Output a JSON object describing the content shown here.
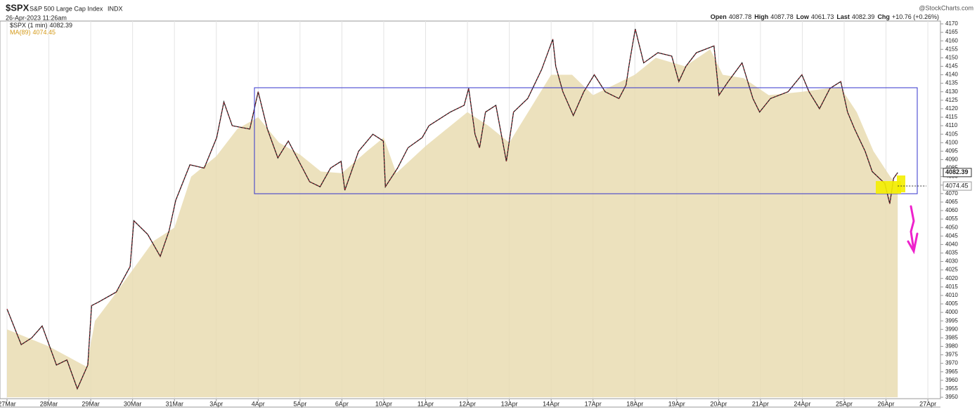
{
  "chart_data": {
    "type": "line",
    "symbol": "$SPX",
    "title": "S&P 500 Large Cap Index",
    "exchange": "INDX",
    "timestamp": "26-Apr-2023 11:26am",
    "source": "@StockCharts.com",
    "quote": [
      {
        "label": "Open",
        "value": 4087.78
      },
      {
        "label": "High",
        "value": 4087.78
      },
      {
        "label": "Low",
        "value": 4061.73
      },
      {
        "label": "Last",
        "value": 4082.39
      },
      {
        "label": "Chg",
        "value": "+10.76 (+0.26%)"
      }
    ],
    "grid": "x",
    "xlim": [
      0,
      22.3
    ],
    "ylim": [
      3950,
      4170
    ],
    "xticks": [
      {
        "value": 0,
        "label": "27Mar"
      },
      {
        "value": 1,
        "label": "28Mar"
      },
      {
        "value": 2,
        "label": "29Mar"
      },
      {
        "value": 3,
        "label": "30Mar"
      },
      {
        "value": 4,
        "label": "31Mar"
      },
      {
        "value": 5,
        "label": "3Apr"
      },
      {
        "value": 6,
        "label": "4Apr"
      },
      {
        "value": 7,
        "label": "5Apr"
      },
      {
        "value": 8,
        "label": "6Apr"
      },
      {
        "value": 9,
        "label": "10Apr"
      },
      {
        "value": 10,
        "label": "11Apr"
      },
      {
        "value": 11,
        "label": "12Apr"
      },
      {
        "value": 12,
        "label": "13Apr"
      },
      {
        "value": 13,
        "label": "14Apr"
      },
      {
        "value": 14,
        "label": "17Apr"
      },
      {
        "value": 15,
        "label": "18Apr"
      },
      {
        "value": 16,
        "label": "19Apr"
      },
      {
        "value": 17,
        "label": "20Apr"
      },
      {
        "value": 18,
        "label": "21Apr"
      },
      {
        "value": 19,
        "label": "24Apr"
      },
      {
        "value": 20,
        "label": "25Apr"
      },
      {
        "value": 21,
        "label": "26Apr"
      },
      {
        "value": 22,
        "label": "27Apr"
      }
    ],
    "yticks": [
      3950,
      3955,
      3960,
      3965,
      3970,
      3975,
      3980,
      3985,
      3990,
      3995,
      4000,
      4005,
      4010,
      4015,
      4020,
      4025,
      4030,
      4035,
      4040,
      4045,
      4050,
      4055,
      4060,
      4065,
      4070,
      4075,
      4080,
      4085,
      4090,
      4095,
      4100,
      4105,
      4110,
      4115,
      4120,
      4125,
      4130,
      4135,
      4140,
      4145,
      4150,
      4155,
      4160,
      4165,
      4170
    ],
    "series": [
      {
        "name": "MA(89)",
        "type": "area",
        "color": "#e9dcb2",
        "x": [
          0,
          1,
          1.9,
          2.1,
          2.5,
          3,
          3.5,
          4,
          4.4,
          5,
          5.5,
          6,
          6.5,
          7,
          7.5,
          8,
          8.6,
          9,
          9.3,
          10,
          11,
          11.5,
          12,
          12.5,
          13,
          13.5,
          14,
          15,
          15.5,
          16.2,
          16.8,
          17.1,
          17.6,
          18.2,
          19,
          19.9,
          20.3,
          20.7,
          21.1,
          21.28
        ],
        "values": [
          3990,
          3980,
          3968,
          3995,
          4008,
          4025,
          4042,
          4050,
          4080,
          4092,
          4108,
          4115,
          4100,
          4093,
          4083,
          4082,
          4095,
          4103,
          4082,
          4098,
          4118,
          4110,
          4100,
          4120,
          4140,
          4140,
          4128,
          4140,
          4150,
          4145,
          4155,
          4140,
          4138,
          4128,
          4130,
          4133,
          4118,
          4095,
          4080,
          4074.45
        ]
      },
      {
        "name": "$SPX (1 min)",
        "type": "line",
        "color": "#1c1c1c",
        "x": [
          0,
          0.34,
          0.59,
          0.84,
          1.18,
          1.43,
          1.68,
          1.93,
          2.02,
          2.18,
          2.61,
          2.94,
          3.03,
          3.36,
          3.66,
          3.87,
          4.03,
          4.37,
          4.71,
          5.01,
          5.18,
          5.38,
          5.8,
          6,
          6.22,
          6.47,
          6.72,
          7.06,
          7.23,
          7.48,
          7.73,
          7.98,
          8.07,
          8.4,
          8.74,
          8.99,
          9.04,
          9.33,
          9.58,
          9.92,
          10.08,
          10.59,
          10.92,
          11.03,
          11.18,
          11.29,
          11.43,
          11.68,
          11.93,
          12.1,
          12.44,
          12.77,
          13.04,
          13.11,
          13.28,
          13.53,
          13.78,
          14.03,
          14.29,
          14.62,
          14.79,
          14.87,
          15.01,
          15.21,
          15.55,
          15.88,
          16.05,
          16.22,
          16.47,
          16.89,
          17.01,
          17.23,
          17.56,
          17.82,
          17.98,
          18.24,
          18.66,
          18.99,
          19.16,
          19.41,
          19.66,
          19.92,
          20.08,
          20.25,
          20.5,
          20.67,
          20.97,
          21.09,
          21.18,
          21.28
        ],
        "values": [
          4002,
          3981,
          3985,
          3992,
          3969,
          3972,
          3955,
          3969,
          4004,
          4006,
          4012,
          4027,
          4054,
          4046,
          4033,
          4048,
          4066,
          4087,
          4085,
          4103,
          4124,
          4110,
          4108,
          4130,
          4108,
          4091,
          4101,
          4085,
          4077,
          4074,
          4085,
          4089,
          4072,
          4095,
          4105,
          4101,
          4074,
          4085,
          4097,
          4103,
          4110,
          4118,
          4122,
          4132,
          4105,
          4097,
          4118,
          4122,
          4089,
          4118,
          4126,
          4143,
          4161,
          4145,
          4130,
          4116,
          4130,
          4140,
          4130,
          4126,
          4134,
          4147,
          4167,
          4147,
          4153,
          4151,
          4136,
          4145,
          4153,
          4157,
          4128,
          4136,
          4147,
          4126,
          4118,
          4126,
          4130,
          4140,
          4130,
          4120,
          4132,
          4136,
          4118,
          4108,
          4095,
          4083,
          4076,
          4064,
          4079,
          4082.39
        ]
      }
    ]
  }
}
